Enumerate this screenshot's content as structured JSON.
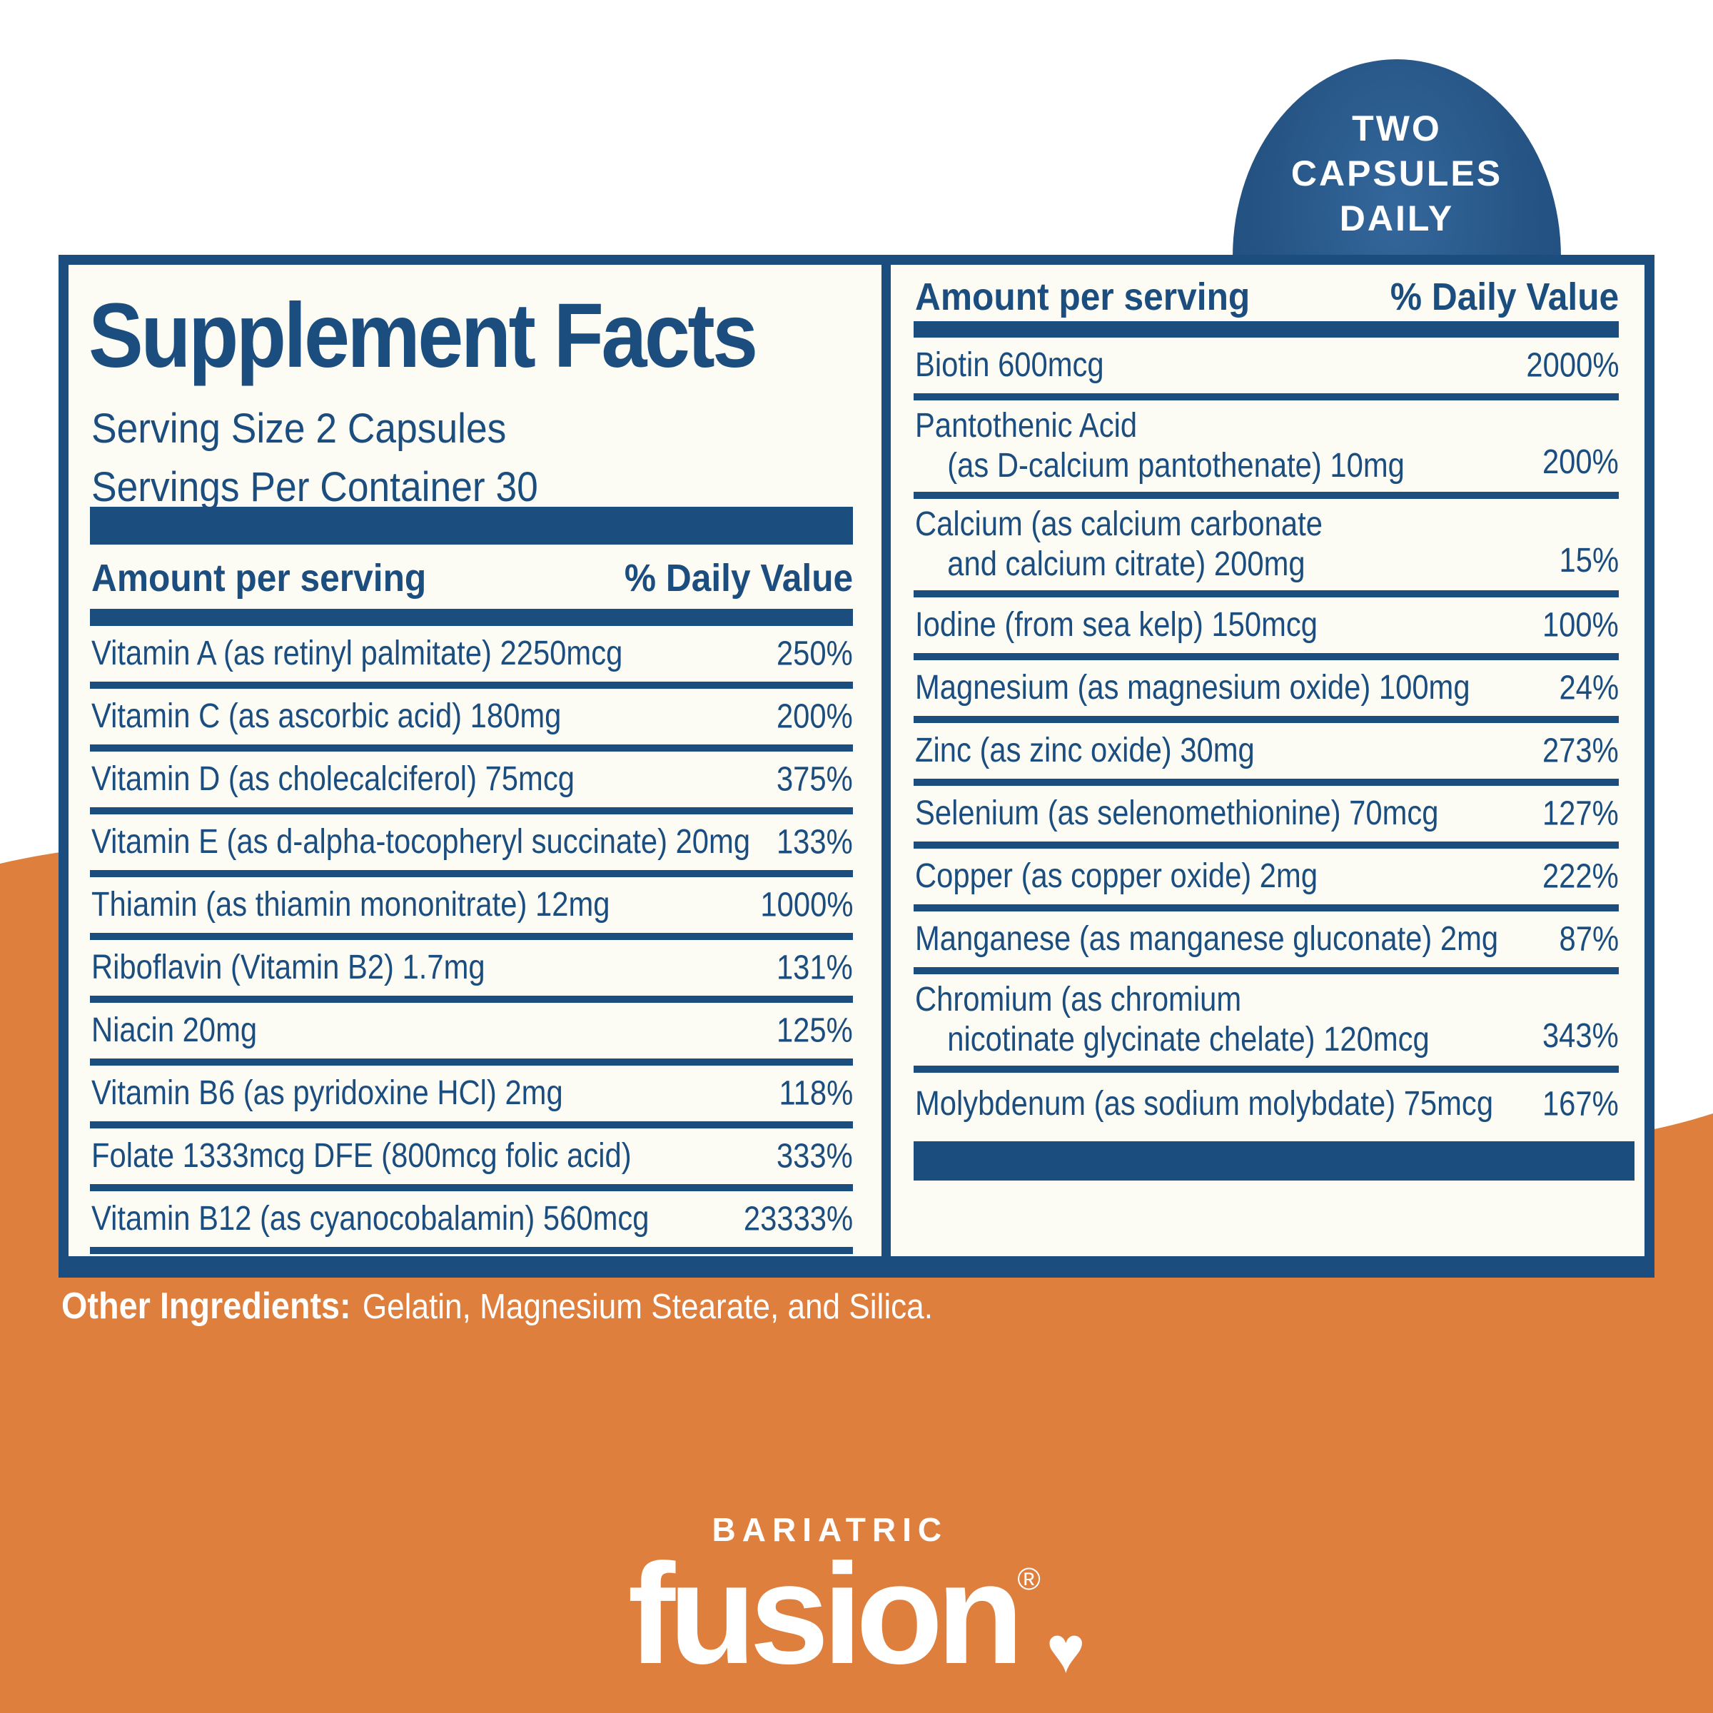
{
  "badge": {
    "lines": [
      "TWO",
      "CAPSULES",
      "DAILY"
    ]
  },
  "panel": {
    "title": "Supplement Facts",
    "serving_size": "Serving Size 2 Capsules",
    "servings_per_container": "Servings Per Container 30",
    "col_header_amount": "Amount per serving",
    "col_header_dv": "% Daily Value",
    "left_rows": [
      {
        "line1": "Vitamin A (as retinyl palmitate) 2250mcg",
        "pct": "250%"
      },
      {
        "line1": "Vitamin C (as ascorbic acid) 180mg",
        "pct": "200%"
      },
      {
        "line1": "Vitamin D (as cholecalciferol) 75mcg",
        "pct": "375%"
      },
      {
        "line1": "Vitamin E (as d-alpha-tocopheryl succinate) 20mg",
        "pct": "133%"
      },
      {
        "line1": "Thiamin (as thiamin mononitrate) 12mg",
        "pct": "1000%"
      },
      {
        "line1": "Riboflavin (Vitamin B2) 1.7mg",
        "pct": "131%"
      },
      {
        "line1": "Niacin 20mg",
        "pct": "125%"
      },
      {
        "line1": "Vitamin B6 (as pyridoxine HCl) 2mg",
        "pct": "118%"
      },
      {
        "line1": "Folate 1333mcg DFE (800mcg folic acid)",
        "pct": "333%"
      },
      {
        "line1": "Vitamin B12 (as cyanocobalamin) 560mcg",
        "pct": "23333%"
      }
    ],
    "right_rows": [
      {
        "line1": "Biotin 600mcg",
        "pct": "2000%"
      },
      {
        "line1": "Pantothenic Acid",
        "line2": "(as D-calcium pantothenate) 10mg",
        "pct": "200%"
      },
      {
        "line1": "Calcium (as calcium carbonate",
        "line2": "and calcium citrate) 200mg",
        "pct": "15%"
      },
      {
        "line1": "Iodine (from sea kelp) 150mcg",
        "pct": "100%"
      },
      {
        "line1": "Magnesium (as magnesium oxide) 100mg",
        "pct": "24%"
      },
      {
        "line1": "Zinc (as zinc oxide) 30mg",
        "pct": "273%"
      },
      {
        "line1": "Selenium (as selenomethionine) 70mcg",
        "pct": "127%"
      },
      {
        "line1": "Copper (as copper oxide) 2mg",
        "pct": "222%"
      },
      {
        "line1": "Manganese (as manganese gluconate) 2mg",
        "pct": "87%"
      },
      {
        "line1": "Chromium (as chromium",
        "line2": "nicotinate glycinate chelate) 120mcg",
        "pct": "343%"
      },
      {
        "line1": "Molybdenum (as sodium molybdate) 75mcg",
        "pct": "167%"
      }
    ]
  },
  "other_ingredients": {
    "label": "Other Ingredients:",
    "value": "Gelatin, Magnesium Stearate, and Silica."
  },
  "logo": {
    "top": "BARIATRIC",
    "main": "fusion",
    "reg": "®",
    "heart": "♥"
  },
  "colors": {
    "navy": "#1b4d7e",
    "badge_blue": "#34679c",
    "orange": "#df7f3d",
    "panel_bg": "#fcfbf4",
    "text_on_orange": "#ffffff"
  }
}
